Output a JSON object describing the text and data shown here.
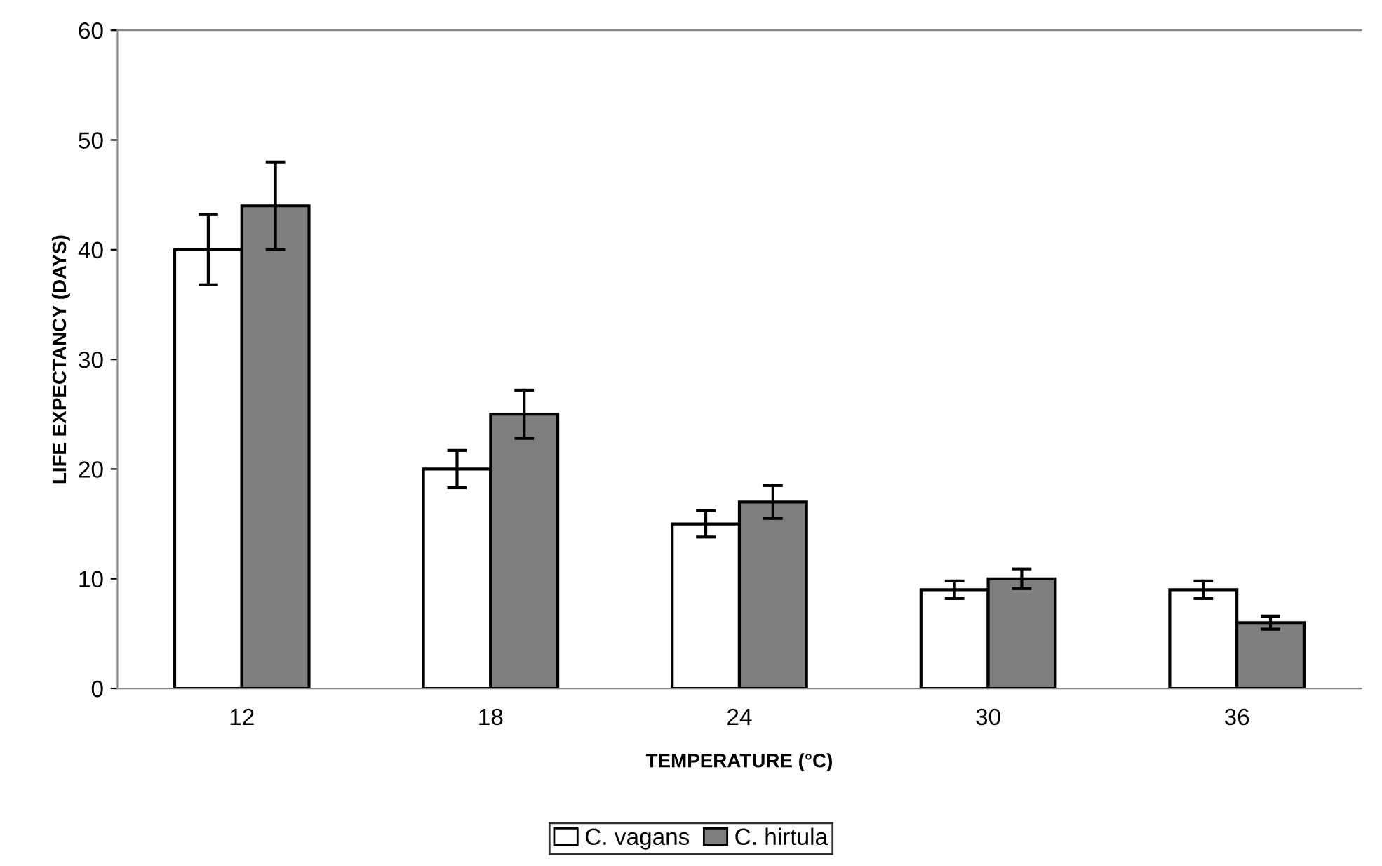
{
  "chart_data": {
    "type": "bar",
    "xlabel": "TEMPERATURE (°C)",
    "ylabel": "LIFE EXPECTANCY (DAYS)",
    "categories": [
      "12",
      "18",
      "24",
      "30",
      "36"
    ],
    "series": [
      {
        "name": "C. vagans",
        "color": "#ffffff",
        "values": [
          40,
          20,
          15,
          9,
          9
        ],
        "errors": [
          3.2,
          1.7,
          1.2,
          0.8,
          0.8
        ]
      },
      {
        "name": "C. hirtula",
        "color": "#7f7f7f",
        "values": [
          44,
          25,
          17,
          10,
          6
        ],
        "errors": [
          4,
          2.2,
          1.5,
          0.9,
          0.6
        ]
      }
    ],
    "ylim": [
      0,
      60
    ],
    "yticks": [
      0,
      10,
      20,
      30,
      40,
      50,
      60
    ],
    "grid": false,
    "legend": "bottom"
  }
}
